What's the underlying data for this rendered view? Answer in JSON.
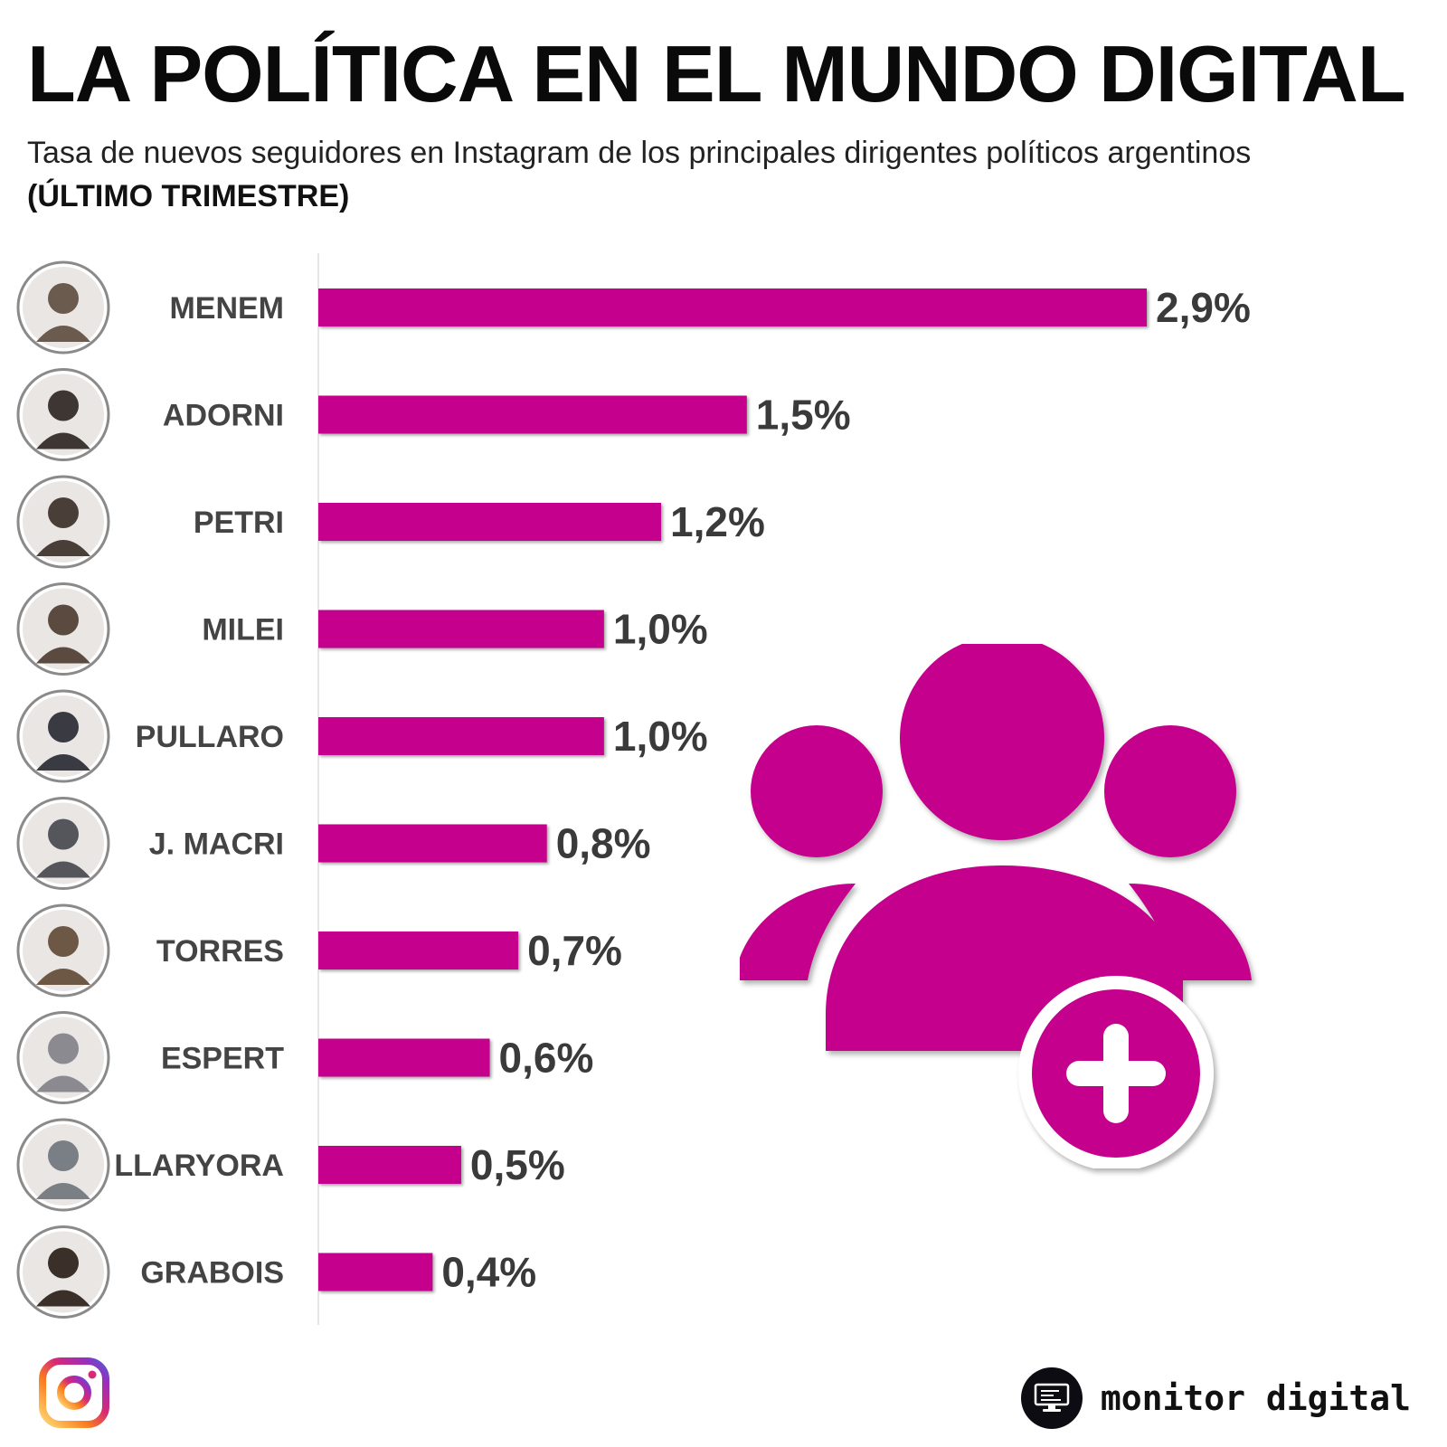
{
  "header": {
    "title": "LA POLÍTICA EN EL MUNDO DIGITAL",
    "subtitle": "Tasa de nuevos seguidores en Instagram de los principales dirigentes políticos argentinos",
    "subtitle_bold": "(ÚLTIMO TRIMESTRE)"
  },
  "chart_data": {
    "type": "bar",
    "orientation": "horizontal",
    "categories": [
      "MENEM",
      "ADORNI",
      "PETRI",
      "MILEI",
      "PULLARO",
      "J. MACRI",
      "TORRES",
      "ESPERT",
      "LLARYORA",
      "GRABOIS"
    ],
    "values": [
      2.9,
      1.5,
      1.2,
      1.0,
      1.0,
      0.8,
      0.7,
      0.6,
      0.5,
      0.4
    ],
    "value_labels": [
      "2,9%",
      "1,5%",
      "1,2%",
      "1,0%",
      "1,0%",
      "0,8%",
      "0,7%",
      "0,6%",
      "0,5%",
      "0,4%"
    ],
    "title": "LA POLÍTICA EN EL MUNDO DIGITAL",
    "xlabel": "",
    "ylabel": "",
    "xlim": [
      0,
      2.9
    ],
    "grid": false,
    "bar_color": "#C4008C"
  },
  "icons": {
    "avatar": "person-avatar-icon",
    "group": "group-add-icon",
    "instagram": "instagram-icon",
    "brand": "monitor-icon"
  },
  "colors": {
    "accent": "#C4008C",
    "text": "#111111"
  },
  "footer": {
    "brand_name": "monitor digital"
  }
}
